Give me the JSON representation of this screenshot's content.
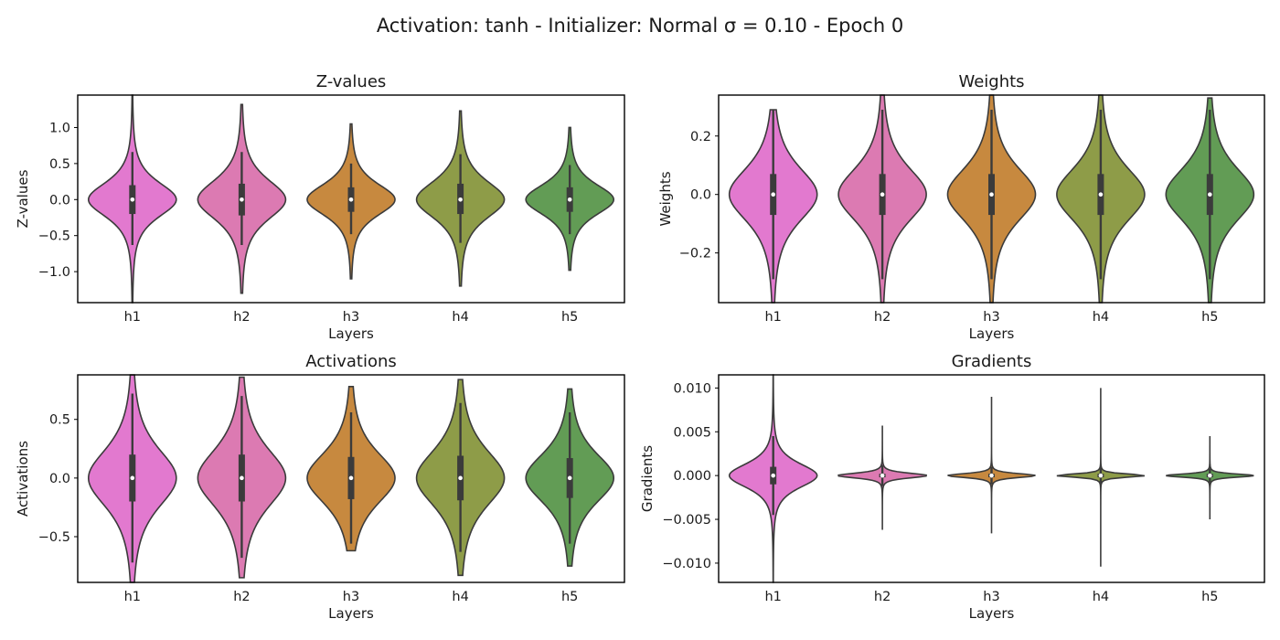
{
  "title": "Activation: tanh - Initializer: Normal σ = 0.10 - Epoch 0",
  "palette": {
    "h1": "#e279cf",
    "h2": "#dc7ab2",
    "h3": "#c7893f",
    "h4": "#8e9c48",
    "h5": "#629c55"
  },
  "chart_data": [
    {
      "type": "violin",
      "title": "Z-values",
      "xlabel": "Layers",
      "ylabel": "Z-values",
      "categories": [
        "h1",
        "h2",
        "h3",
        "h4",
        "h5"
      ],
      "ylim": [
        -1.43,
        1.45
      ],
      "yticks": [
        1.0,
        0.5,
        0.0,
        -0.5,
        -1.0
      ],
      "ytick_labels": [
        "1.0",
        "0.5",
        "0.0",
        "−0.5",
        "−1.0"
      ],
      "violins": [
        {
          "layer": "h1",
          "min": -1.43,
          "max": 1.45,
          "q1": -0.2,
          "q3": 0.2,
          "median": 0.0,
          "wlo": -0.63,
          "whi": 0.66,
          "sd": 0.26
        },
        {
          "layer": "h2",
          "min": -1.3,
          "max": 1.32,
          "q1": -0.22,
          "q3": 0.22,
          "median": 0.0,
          "wlo": -0.63,
          "whi": 0.66,
          "sd": 0.3
        },
        {
          "layer": "h3",
          "min": -1.1,
          "max": 1.05,
          "q1": -0.17,
          "q3": 0.17,
          "median": 0.0,
          "wlo": -0.48,
          "whi": 0.5,
          "sd": 0.24
        },
        {
          "layer": "h4",
          "min": -1.2,
          "max": 1.23,
          "q1": -0.2,
          "q3": 0.22,
          "median": 0.0,
          "wlo": -0.6,
          "whi": 0.63,
          "sd": 0.28
        },
        {
          "layer": "h5",
          "min": -0.98,
          "max": 1.0,
          "q1": -0.17,
          "q3": 0.17,
          "median": 0.0,
          "wlo": -0.48,
          "whi": 0.48,
          "sd": 0.23
        }
      ]
    },
    {
      "type": "violin",
      "title": "Weights",
      "xlabel": "Layers",
      "ylabel": "Weights",
      "categories": [
        "h1",
        "h2",
        "h3",
        "h4",
        "h5"
      ],
      "ylim": [
        -0.37,
        0.34
      ],
      "yticks": [
        0.2,
        0.0,
        -0.2
      ],
      "ytick_labels": [
        "0.2",
        "0.0",
        "−0.2"
      ],
      "violins": [
        {
          "layer": "h1",
          "min": -0.37,
          "max": 0.29,
          "q1": -0.07,
          "q3": 0.07,
          "median": 0.0,
          "wlo": -0.29,
          "whi": 0.29,
          "sd": 0.1
        },
        {
          "layer": "h2",
          "min": -0.37,
          "max": 0.34,
          "q1": -0.07,
          "q3": 0.07,
          "median": 0.0,
          "wlo": -0.29,
          "whi": 0.29,
          "sd": 0.1
        },
        {
          "layer": "h3",
          "min": -0.37,
          "max": 0.34,
          "q1": -0.07,
          "q3": 0.07,
          "median": 0.0,
          "wlo": -0.29,
          "whi": 0.29,
          "sd": 0.1
        },
        {
          "layer": "h4",
          "min": -0.37,
          "max": 0.34,
          "q1": -0.07,
          "q3": 0.07,
          "median": 0.0,
          "wlo": -0.29,
          "whi": 0.29,
          "sd": 0.1
        },
        {
          "layer": "h5",
          "min": -0.37,
          "max": 0.33,
          "q1": -0.07,
          "q3": 0.07,
          "median": 0.0,
          "wlo": -0.29,
          "whi": 0.29,
          "sd": 0.1
        }
      ]
    },
    {
      "type": "violin",
      "title": "Activations",
      "xlabel": "Layers",
      "ylabel": "Activations",
      "categories": [
        "h1",
        "h2",
        "h3",
        "h4",
        "h5"
      ],
      "ylim": [
        -0.89,
        0.88
      ],
      "yticks": [
        0.5,
        0.0,
        -0.5
      ],
      "ytick_labels": [
        "0.5",
        "0.0",
        "−0.5"
      ],
      "violins": [
        {
          "layer": "h1",
          "min": -0.89,
          "max": 0.88,
          "q1": -0.2,
          "q3": 0.2,
          "median": 0.0,
          "wlo": -0.72,
          "whi": 0.72,
          "sd": 0.27
        },
        {
          "layer": "h2",
          "min": -0.85,
          "max": 0.86,
          "q1": -0.2,
          "q3": 0.2,
          "median": 0.0,
          "wlo": -0.68,
          "whi": 0.7,
          "sd": 0.27
        },
        {
          "layer": "h3",
          "min": -0.62,
          "max": 0.78,
          "q1": -0.18,
          "q3": 0.18,
          "median": 0.0,
          "wlo": -0.56,
          "whi": 0.56,
          "sd": 0.24
        },
        {
          "layer": "h4",
          "min": -0.83,
          "max": 0.84,
          "q1": -0.19,
          "q3": 0.19,
          "median": 0.0,
          "wlo": -0.63,
          "whi": 0.64,
          "sd": 0.26
        },
        {
          "layer": "h5",
          "min": -0.75,
          "max": 0.76,
          "q1": -0.17,
          "q3": 0.17,
          "median": 0.0,
          "wlo": -0.56,
          "whi": 0.56,
          "sd": 0.23
        }
      ]
    },
    {
      "type": "violin",
      "title": "Gradients",
      "xlabel": "Layers",
      "ylabel": "Gradients",
      "categories": [
        "h1",
        "h2",
        "h3",
        "h4",
        "h5"
      ],
      "ylim": [
        -0.0122,
        0.0115
      ],
      "yticks": [
        0.01,
        0.005,
        0.0,
        -0.005,
        -0.01
      ],
      "ytick_labels": [
        "0.010",
        "0.005",
        "0.000",
        "−0.005",
        "−0.010"
      ],
      "violins": [
        {
          "layer": "h1",
          "min": -0.0122,
          "max": 0.0115,
          "q1": -0.001,
          "q3": 0.001,
          "median": 0.0,
          "wlo": -0.0045,
          "whi": 0.0045,
          "sd": 0.0015
        },
        {
          "layer": "h2",
          "min": -0.0062,
          "max": 0.0057,
          "q1": -0.0002,
          "q3": 0.0002,
          "median": 0.0,
          "wlo": -0.0012,
          "whi": 0.0012,
          "sd": 0.0003
        },
        {
          "layer": "h3",
          "min": -0.0066,
          "max": 0.009,
          "q1": -0.0002,
          "q3": 0.0002,
          "median": 0.0,
          "wlo": -0.001,
          "whi": 0.001,
          "sd": 0.00025
        },
        {
          "layer": "h4",
          "min": -0.0104,
          "max": 0.01,
          "q1": -0.0002,
          "q3": 0.0002,
          "median": 0.0,
          "wlo": -0.001,
          "whi": 0.001,
          "sd": 0.0002
        },
        {
          "layer": "h5",
          "min": -0.005,
          "max": 0.0045,
          "q1": -0.0002,
          "q3": 0.0002,
          "median": 0.0,
          "wlo": -0.0008,
          "whi": 0.0008,
          "sd": 0.0002
        }
      ]
    }
  ]
}
